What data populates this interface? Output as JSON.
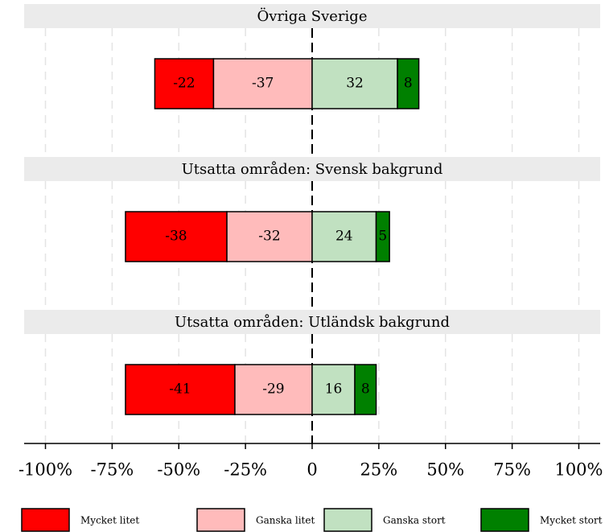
{
  "chart_data": {
    "type": "diverging-stacked-bar",
    "categories": [
      "Övriga Sverige",
      "Utsatta områden: Svensk bakgrund",
      "Utsatta områden: Utländsk bakgrund"
    ],
    "series": [
      {
        "name": "Mycket litet",
        "color": "#ff0000",
        "values": [
          -22,
          -38,
          -41
        ]
      },
      {
        "name": "Ganska litet",
        "color": "#ffbbbb",
        "values": [
          -37,
          -32,
          -29
        ]
      },
      {
        "name": "Ganska stort",
        "color": "#c1e1c1",
        "values": [
          32,
          24,
          16
        ]
      },
      {
        "name": "Mycket stort",
        "color": "#008000",
        "values": [
          8,
          5,
          8
        ]
      }
    ],
    "xlim": [
      -108,
      108
    ],
    "xticks": [
      {
        "value": -100,
        "label": "-100%"
      },
      {
        "value": -75,
        "label": "-75%"
      },
      {
        "value": -50,
        "label": "-50%"
      },
      {
        "value": -25,
        "label": "-25%"
      },
      0,
      {
        "value": 25,
        "label": "25%"
      },
      {
        "value": 50,
        "label": "50%"
      },
      {
        "value": 75,
        "label": "75%"
      },
      {
        "value": 100,
        "label": "100%"
      }
    ],
    "grid": true,
    "legend": "bottom"
  }
}
